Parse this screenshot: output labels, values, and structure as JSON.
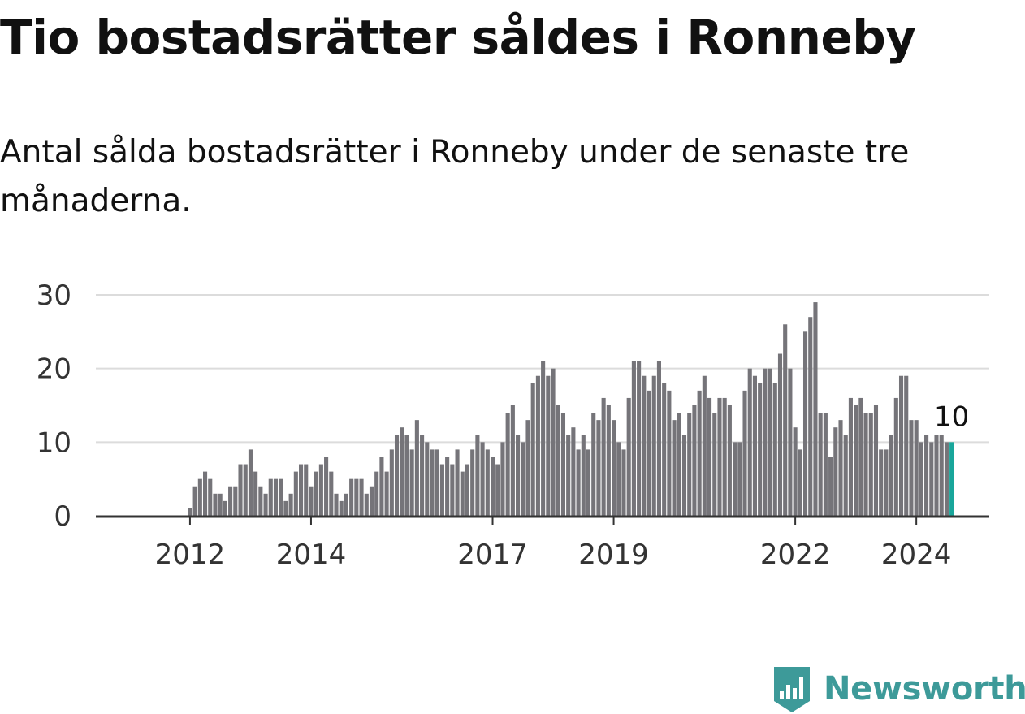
{
  "title": "Tio bostadsrätter såldes i Ronneby",
  "subtitle": "Antal sålda bostadsrätter i Ronneby under de senaste tre månaderna.",
  "brand": {
    "name": "Newsworthy",
    "icon": "newsworthy-logo-icon"
  },
  "colors": {
    "bar": "#757479",
    "highlight": "#19a69b",
    "grid": "#dcdcdc",
    "axis": "#333333",
    "brand": "#3d9a99"
  },
  "chart_data": {
    "type": "bar",
    "x_start": "2011-01",
    "interval": "month",
    "values": [
      0,
      0,
      0,
      0,
      0,
      0,
      0,
      0,
      0,
      0,
      0,
      0,
      1,
      4,
      5,
      6,
      5,
      3,
      3,
      2,
      4,
      4,
      7,
      7,
      9,
      6,
      4,
      3,
      5,
      5,
      5,
      2,
      3,
      6,
      7,
      7,
      4,
      6,
      7,
      8,
      6,
      3,
      2,
      3,
      5,
      5,
      5,
      3,
      4,
      6,
      8,
      6,
      9,
      11,
      12,
      11,
      9,
      13,
      11,
      10,
      9,
      9,
      7,
      8,
      7,
      9,
      6,
      7,
      9,
      11,
      10,
      9,
      8,
      7,
      10,
      14,
      15,
      11,
      10,
      13,
      18,
      19,
      21,
      19,
      20,
      15,
      14,
      11,
      12,
      9,
      11,
      9,
      14,
      13,
      16,
      15,
      13,
      10,
      9,
      16,
      21,
      21,
      19,
      17,
      19,
      21,
      18,
      17,
      13,
      14,
      11,
      14,
      15,
      17,
      19,
      16,
      14,
      16,
      16,
      15,
      10,
      10,
      17,
      20,
      19,
      18,
      20,
      20,
      18,
      22,
      26,
      20,
      12,
      9,
      25,
      27,
      29,
      14,
      14,
      8,
      12,
      13,
      11,
      16,
      15,
      16,
      14,
      14,
      15,
      9,
      9,
      11,
      16,
      19,
      19,
      13,
      13,
      10,
      11,
      10,
      11,
      11,
      10,
      10
    ],
    "x_ticks": [
      "2012",
      "2014",
      "2017",
      "2019",
      "2022",
      "2024"
    ],
    "x_tick_dates": [
      "2012-01",
      "2014-01",
      "2017-01",
      "2019-01",
      "2022-01",
      "2024-01"
    ],
    "y_ticks": [
      0,
      10,
      20,
      30
    ],
    "ylim": [
      0,
      30
    ],
    "highlight_last": true,
    "annotation": {
      "label": "10",
      "value": 10
    }
  }
}
